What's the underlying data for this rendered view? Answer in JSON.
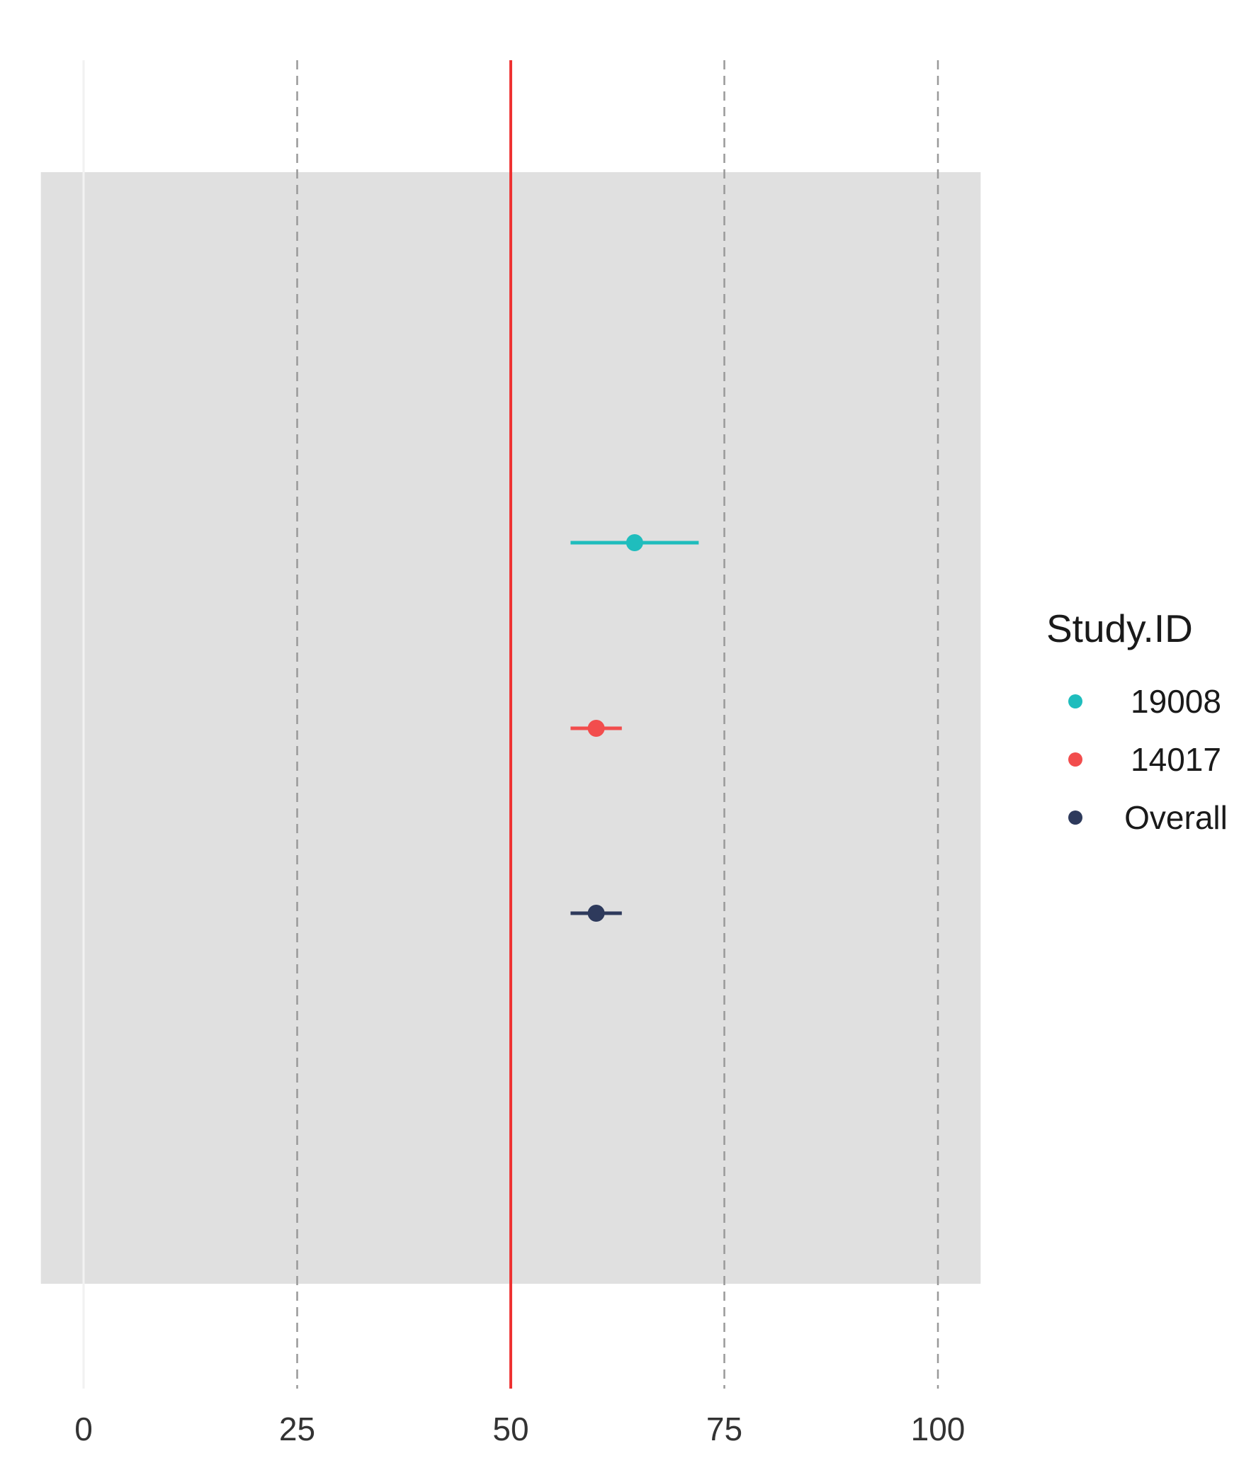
{
  "chart_data": {
    "type": "forest",
    "title": "",
    "xlabel": "",
    "ylabel": "",
    "xlim": [
      -5,
      105
    ],
    "x_ticks": [
      "0",
      "25",
      "50",
      "75",
      "100"
    ],
    "x_tick_values": [
      0,
      25,
      50,
      75,
      100
    ],
    "reference_line": {
      "value": 50,
      "color": "#ee3333"
    },
    "grid": true,
    "legend": {
      "title": "Study.ID",
      "placement": "right"
    },
    "series": [
      {
        "name": "19008",
        "estimate": 64.5,
        "lower": 57.0,
        "upper": 72.0,
        "color": "#1fbdbd"
      },
      {
        "name": "14017",
        "estimate": 60.0,
        "lower": 57.0,
        "upper": 63.0,
        "color": "#f24d4d"
      },
      {
        "name": "Overall",
        "estimate": 60.0,
        "lower": 57.0,
        "upper": 63.0,
        "color": "#2e3a5c"
      }
    ]
  },
  "colors": {
    "panel_background": "#e0e0e0",
    "page_background": "#ffffff",
    "grid_line": "#999999",
    "zero_line": "#f2f2f2"
  }
}
